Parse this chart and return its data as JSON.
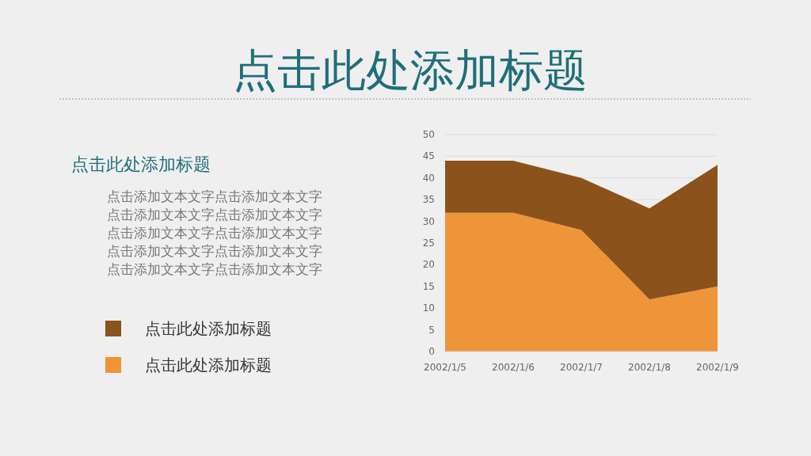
{
  "chart_data": {
    "type": "area",
    "title": "点击此处添加标题",
    "subtitle": "点击此处添加标题",
    "annotations": [
      "点击添加文本文字点击添加文本文字",
      "点击添加文本文字点击添加文本文字",
      "点击添加文本文字点击添加文本文字",
      "点击添加文本文字点击添加文本文字",
      "点击添加文本文字点击添加文本文字"
    ],
    "categories": [
      "2002/1/5",
      "2002/1/6",
      "2002/1/7",
      "2002/1/8",
      "2002/1/9"
    ],
    "stacked": true,
    "series": [
      {
        "name": "点击此处添加标题",
        "color": "#ef9539",
        "values": [
          32,
          32,
          28,
          12,
          15
        ]
      },
      {
        "name": "点击此处添加标题",
        "color": "#8b521b",
        "values": [
          12,
          12,
          12,
          21,
          28
        ]
      }
    ],
    "ylim": [
      0,
      50
    ],
    "yticks": [
      0,
      5,
      10,
      15,
      20,
      25,
      30,
      35,
      40,
      45,
      50
    ],
    "grid": "y",
    "legend": "left"
  }
}
